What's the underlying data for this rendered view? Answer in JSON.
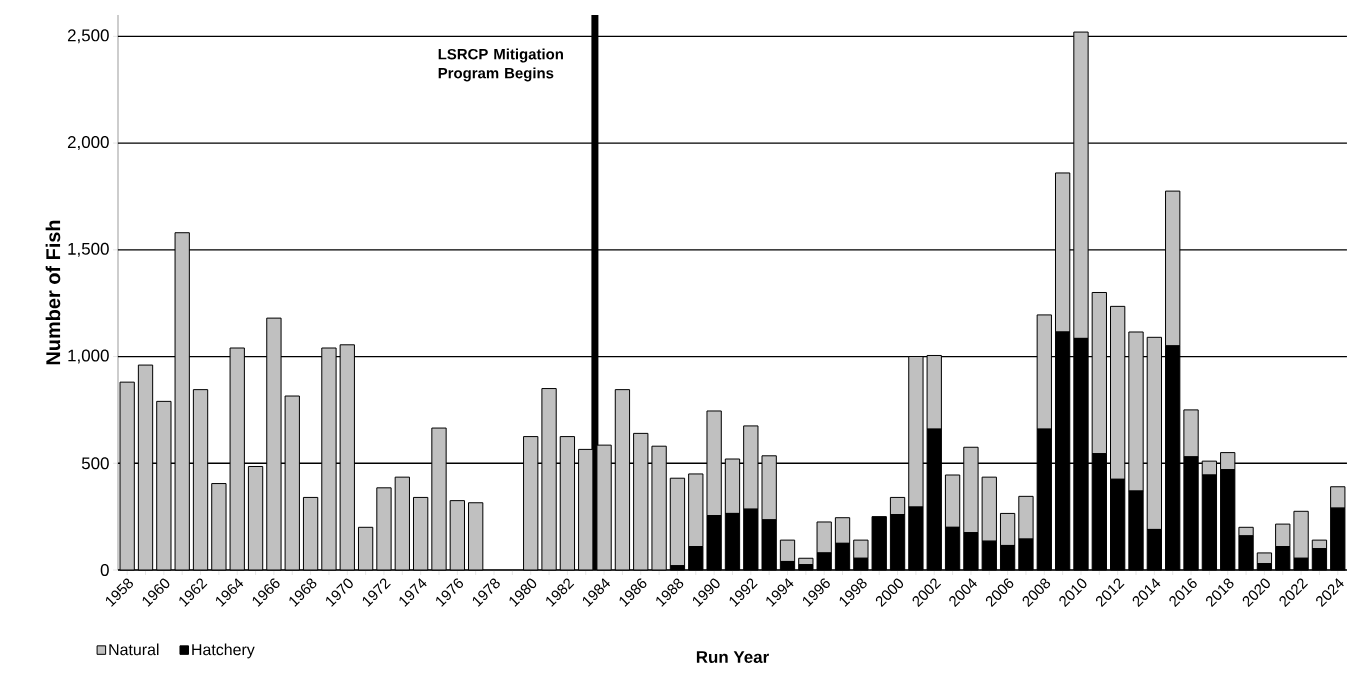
{
  "chart_data": {
    "type": "bar",
    "stacked": true,
    "xlabel": "Run Year",
    "ylabel": "Number of Fish",
    "x": [
      1958,
      1959,
      1960,
      1961,
      1962,
      1963,
      1964,
      1965,
      1966,
      1967,
      1968,
      1969,
      1970,
      1971,
      1972,
      1973,
      1974,
      1975,
      1976,
      1977,
      1978,
      1979,
      1980,
      1981,
      1982,
      1983,
      1984,
      1985,
      1986,
      1987,
      1988,
      1989,
      1990,
      1991,
      1992,
      1993,
      1994,
      1995,
      1996,
      1997,
      1998,
      1999,
      2000,
      2001,
      2002,
      2003,
      2004,
      2005,
      2006,
      2007,
      2008,
      2009,
      2010,
      2011,
      2012,
      2013,
      2014,
      2015,
      2016,
      2017,
      2018,
      2019,
      2020,
      2021,
      2022,
      2023,
      2024
    ],
    "series": [
      {
        "name": "Hatchery",
        "color": "#000000",
        "values": [
          0,
          0,
          0,
          0,
          0,
          0,
          0,
          0,
          0,
          0,
          0,
          0,
          0,
          0,
          0,
          0,
          0,
          0,
          0,
          0,
          0,
          0,
          0,
          0,
          0,
          0,
          0,
          0,
          0,
          0,
          20,
          110,
          255,
          265,
          285,
          235,
          40,
          25,
          80,
          125,
          55,
          250,
          260,
          295,
          660,
          200,
          175,
          135,
          115,
          145,
          660,
          1115,
          1085,
          545,
          425,
          370,
          190,
          1050,
          530,
          445,
          470,
          160,
          30,
          110,
          55,
          100,
          290
        ]
      },
      {
        "name": "Natural",
        "color": "#c0c0c0",
        "values": [
          880,
          960,
          790,
          1580,
          845,
          405,
          1040,
          485,
          1180,
          815,
          340,
          1040,
          1055,
          200,
          385,
          435,
          340,
          665,
          325,
          315,
          0,
          0,
          625,
          850,
          625,
          565,
          585,
          845,
          640,
          580,
          410,
          340,
          490,
          255,
          390,
          300,
          100,
          30,
          145,
          120,
          85,
          0,
          80,
          705,
          345,
          245,
          400,
          300,
          150,
          200,
          535,
          745,
          1435,
          755,
          810,
          745,
          900,
          725,
          220,
          65,
          80,
          40,
          50,
          105,
          220,
          40,
          100
        ]
      }
    ],
    "xlim": [
      1957.5,
      2024.5
    ],
    "xticks": [
      1958,
      {
        "value": 1959,
        "label": null
      },
      1960,
      {
        "value": 1961,
        "label": null
      },
      1962,
      {
        "value": 1963,
        "label": null
      },
      1964,
      {
        "value": 1965,
        "label": null
      },
      1966,
      {
        "value": 1967,
        "label": null
      },
      1968,
      {
        "value": 1969,
        "label": null
      },
      1970,
      {
        "value": 1971,
        "label": null
      },
      1972,
      {
        "value": 1973,
        "label": null
      },
      1974,
      {
        "value": 1975,
        "label": null
      },
      1976,
      {
        "value": 1977,
        "label": null
      },
      1978,
      {
        "value": 1979,
        "label": null
      },
      1980,
      {
        "value": 1981,
        "label": null
      },
      1982,
      {
        "value": 1983,
        "label": null
      },
      1984,
      {
        "value": 1985,
        "label": null
      },
      1986,
      {
        "value": 1987,
        "label": null
      },
      1988,
      {
        "value": 1989,
        "label": null
      },
      1990,
      {
        "value": 1991,
        "label": null
      },
      1992,
      {
        "value": 1993,
        "label": null
      },
      1994,
      {
        "value": 1995,
        "label": null
      },
      1996,
      {
        "value": 1997,
        "label": null
      },
      1998,
      {
        "value": 1999,
        "label": null
      },
      2000,
      {
        "value": 2001,
        "label": null
      },
      2002,
      {
        "value": 2003,
        "label": null
      },
      2004,
      {
        "value": 2005,
        "label": null
      },
      2006,
      {
        "value": 2007,
        "label": null
      },
      2008,
      {
        "value": 2009,
        "label": null
      },
      2010,
      {
        "value": 2011,
        "label": null
      },
      2012,
      {
        "value": 2013,
        "label": null
      },
      2014,
      {
        "value": 2015,
        "label": null
      },
      2016,
      {
        "value": 2017,
        "label": null
      },
      2018,
      {
        "value": 2019,
        "label": null
      },
      2020,
      {
        "value": 2021,
        "label": null
      },
      2022,
      {
        "value": 2023,
        "label": null
      },
      2024
    ],
    "ylim": [
      0,
      2600
    ],
    "yticks": [
      0,
      500,
      {
        "value": 1000,
        "label": "1,000"
      },
      {
        "value": 1500,
        "label": "1,500"
      },
      {
        "value": 2000,
        "label": "2,000"
      },
      {
        "value": 2500,
        "label": "2,500"
      }
    ],
    "grid": "y",
    "legend": "bottom left",
    "ref_lines": [
      {
        "axis": "x",
        "value": 1983.5,
        "label": "LSRCP Mitigation Program Begins",
        "color": "#000000"
      }
    ]
  }
}
